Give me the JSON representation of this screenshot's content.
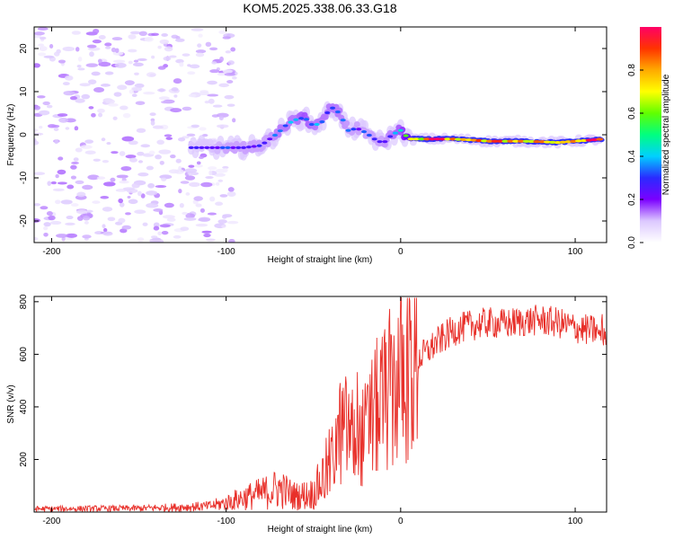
{
  "figure": {
    "title": "KOM5.2025.338.06.33.G18"
  },
  "chart_data": [
    {
      "type": "heatmap",
      "title": "KOM5.2025.338.06.33.G18",
      "xlabel": "Height of straight line (km)",
      "ylabel": "Frequency (Hz)",
      "xlim": [
        -210,
        118
      ],
      "ylim": [
        -25,
        25
      ],
      "xticks": [
        -200,
        -100,
        0,
        100
      ],
      "yticks": [
        -20,
        -10,
        0,
        10,
        20
      ],
      "colorbar": {
        "label": "Normalized spectral amplitude",
        "range": [
          0,
          1
        ],
        "ticks": [
          0.0,
          0.2,
          0.4,
          0.6,
          0.8
        ],
        "tick_labels": [
          "0.0",
          "0.2",
          "0.4",
          "0.6",
          "0.8"
        ],
        "colors": [
          "#ffffff",
          "#dcc8ff",
          "#7b00ff",
          "#2a2aff",
          "#00d0ff",
          "#00ff80",
          "#60ff00",
          "#ffff00",
          "#ffaa00",
          "#ff3300",
          "#ff0066"
        ]
      },
      "trace": {
        "description": "Dominant frequency ridge vs. height",
        "x": [
          -120,
          -110,
          -100,
          -90,
          -80,
          -75,
          -70,
          -65,
          -60,
          -55,
          -50,
          -45,
          -40,
          -35,
          -30,
          -25,
          -20,
          -15,
          -10,
          -5,
          0,
          5,
          10,
          20,
          30,
          40,
          50,
          60,
          70,
          80,
          90,
          100,
          110,
          115
        ],
        "y": [
          -3,
          -3,
          -3,
          -3,
          -2.5,
          -1,
          0.5,
          2.5,
          3.5,
          4,
          2,
          3,
          6.5,
          5,
          1,
          1.5,
          0.5,
          -1,
          -2,
          0,
          1,
          -1,
          -1,
          -1,
          -1,
          -1.2,
          -1.5,
          -1.5,
          -1.5,
          -1.6,
          -1.8,
          -1.5,
          -1.2,
          -1
        ],
        "amplitude": [
          0.25,
          0.25,
          0.3,
          0.3,
          0.3,
          0.3,
          0.35,
          0.35,
          0.35,
          0.4,
          0.35,
          0.35,
          0.35,
          0.35,
          0.3,
          0.3,
          0.3,
          0.3,
          0.3,
          0.35,
          0.4,
          0.6,
          0.8,
          0.9,
          0.9,
          0.85,
          0.8,
          0.85,
          0.9,
          0.85,
          0.8,
          0.85,
          0.9,
          0.85
        ]
      },
      "noise_region": {
        "x_range": [
          -210,
          -120
        ],
        "y_range": [
          -25,
          25
        ],
        "level": "low (0.0-0.25)"
      }
    },
    {
      "type": "line",
      "xlabel": "Height of straight line (km)",
      "ylabel": "SNR (v/v)",
      "xlim": [
        -210,
        118
      ],
      "ylim": [
        0,
        820
      ],
      "xticks": [
        -200,
        -100,
        0,
        100
      ],
      "yticks": [
        200,
        400,
        600,
        800
      ],
      "color": "#e8302a",
      "series": [
        {
          "name": "SNR",
          "envelope_x": [
            -210,
            -150,
            -110,
            -100,
            -90,
            -80,
            -70,
            -60,
            -50,
            -40,
            -35,
            -30,
            -25,
            -20,
            -15,
            -10,
            -5,
            0,
            10,
            20,
            30,
            40,
            50,
            60,
            70,
            80,
            90,
            100,
            110,
            115,
            118
          ],
          "envelope_y": [
            12,
            14,
            22,
            35,
            55,
            70,
            90,
            60,
            70,
            180,
            300,
            320,
            250,
            300,
            380,
            420,
            470,
            520,
            580,
            640,
            690,
            710,
            720,
            715,
            725,
            730,
            720,
            700,
            690,
            700,
            690
          ]
        }
      ]
    }
  ]
}
